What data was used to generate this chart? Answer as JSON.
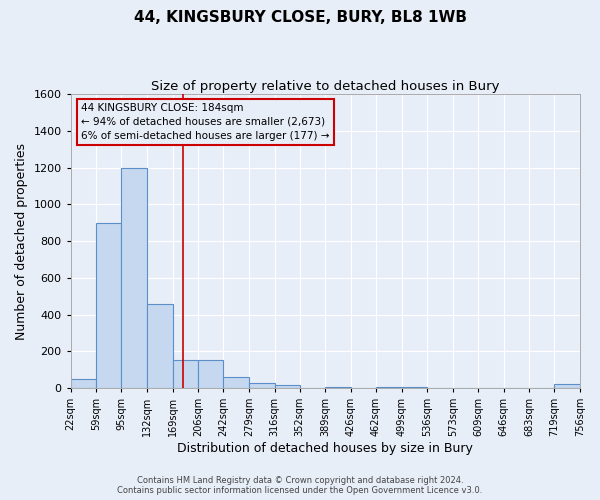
{
  "title": "44, KINGSBURY CLOSE, BURY, BL8 1WB",
  "subtitle": "Size of property relative to detached houses in Bury",
  "xlabel": "Distribution of detached houses by size in Bury",
  "ylabel": "Number of detached properties",
  "footer_line1": "Contains HM Land Registry data © Crown copyright and database right 2024.",
  "footer_line2": "Contains public sector information licensed under the Open Government Licence v3.0.",
  "bin_edges": [
    22,
    59,
    95,
    132,
    169,
    206,
    242,
    279,
    316,
    352,
    389,
    426,
    462,
    499,
    536,
    573,
    609,
    646,
    683,
    719,
    756
  ],
  "bar_heights": [
    50,
    900,
    1200,
    460,
    155,
    155,
    60,
    30,
    15,
    0,
    5,
    0,
    5,
    5,
    0,
    0,
    0,
    0,
    0,
    20
  ],
  "bar_color": "#c5d8f0",
  "bar_edge_color": "#5b8fc9",
  "bg_color": "#e8eef8",
  "grid_color": "#d0d8e8",
  "vline_x": 184,
  "vline_color": "#cc0000",
  "ylim": [
    0,
    1600
  ],
  "yticks": [
    0,
    200,
    400,
    600,
    800,
    1000,
    1200,
    1400,
    1600
  ],
  "annotation_text": "44 KINGSBURY CLOSE: 184sqm\n← 94% of detached houses are smaller (2,673)\n6% of semi-detached houses are larger (177) →",
  "annotation_box_color": "#cc0000",
  "title_fontsize": 11,
  "subtitle_fontsize": 9.5,
  "tick_fontsize": 7,
  "ylabel_fontsize": 9,
  "xlabel_fontsize": 9,
  "footer_fontsize": 6
}
